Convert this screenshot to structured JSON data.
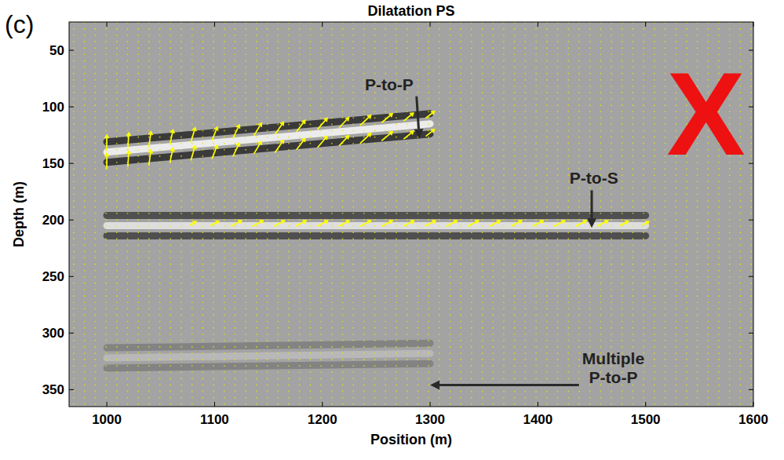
{
  "chart_data": {
    "type": "quiver",
    "title": "Dilatation PS",
    "panel": "(c)",
    "x_label": "Position (m)",
    "y_label": "Depth (m)",
    "xlim": [
      965,
      1600
    ],
    "ylim": [
      25,
      365
    ],
    "xticks": [
      1000,
      1100,
      1200,
      1300,
      1400,
      1500,
      1600
    ],
    "yticks": [
      50,
      100,
      150,
      200,
      250,
      300,
      350
    ],
    "events": [
      {
        "x": [
          1000,
          1300
        ],
        "depth": [
          140,
          115
        ],
        "amplitude": 1
      },
      {
        "x": [
          1000,
          1500
        ],
        "depth": [
          205,
          205
        ],
        "amplitude": 0.8
      },
      {
        "x": [
          1000,
          1300
        ],
        "depth": [
          322,
          318
        ],
        "amplitude": 0.3
      }
    ],
    "vectors": {
      "x": [
        1000,
        1020,
        1040,
        1060,
        1080,
        1100,
        1120,
        1140,
        1160,
        1180,
        1200,
        1220,
        1240,
        1260,
        1280,
        1300,
        1000,
        1020,
        1040,
        1060,
        1080,
        1100,
        1120,
        1140,
        1160,
        1180,
        1200,
        1220,
        1240,
        1260,
        1280,
        1300,
        1080,
        1100,
        1120,
        1140,
        1160,
        1180,
        1200,
        1220,
        1240,
        1260,
        1280,
        1300,
        1320,
        1340,
        1360,
        1380,
        1400,
        1420,
        1440,
        1460,
        1480,
        1500
      ],
      "depth": [
        132,
        130,
        129,
        127,
        125,
        124,
        122,
        120,
        119,
        117,
        115,
        114,
        112,
        110,
        109,
        107,
        148,
        146,
        145,
        143,
        141,
        140,
        138,
        136,
        135,
        133,
        131,
        130,
        128,
        126,
        125,
        123,
        203,
        203,
        203,
        203,
        203,
        203,
        203,
        203,
        203,
        203,
        203,
        203,
        203,
        203,
        203,
        203,
        203,
        203,
        203,
        203,
        203,
        203
      ],
      "dx": [
        0,
        1,
        2,
        3,
        4,
        5,
        6,
        7,
        8,
        8,
        9,
        9,
        10,
        10,
        9,
        8,
        0,
        1,
        2,
        3,
        4,
        5,
        6,
        7,
        8,
        8,
        9,
        9,
        10,
        10,
        9,
        8,
        6,
        8,
        10,
        10,
        10,
        10,
        10,
        10,
        10,
        10,
        10,
        10,
        10,
        10,
        10,
        10,
        10,
        10,
        10,
        10,
        8,
        6
      ],
      "dz": [
        -14,
        -14,
        -14,
        -13,
        -13,
        -12,
        -12,
        -11,
        -11,
        -10,
        -10,
        -9,
        -9,
        -8,
        -7,
        -6,
        -14,
        -14,
        -14,
        -13,
        -13,
        -12,
        -12,
        -11,
        -11,
        -10,
        -10,
        -9,
        -9,
        -8,
        -7,
        -6,
        -3,
        -4,
        -5,
        -5,
        -5,
        -5,
        -5,
        -5,
        -5,
        -5,
        -5,
        -5,
        -5,
        -5,
        -5,
        -5,
        -5,
        -5,
        -5,
        -5,
        -4,
        -3
      ]
    },
    "annotations": [
      {
        "text": "P-to-P",
        "x": 1290,
        "y": 128,
        "label_x": 1262,
        "label_y": 80
      },
      {
        "text": "P-to-S",
        "x": 1450,
        "y": 207,
        "label_x": 1452,
        "label_y": 163
      },
      {
        "text": "Multiple P-to-P",
        "x": 1300,
        "y": 346,
        "label_x": 1470,
        "label_y": 330
      }
    ],
    "stamp": {
      "text": "X",
      "color": "#ee1111",
      "x": 1556,
      "y": 106
    }
  }
}
